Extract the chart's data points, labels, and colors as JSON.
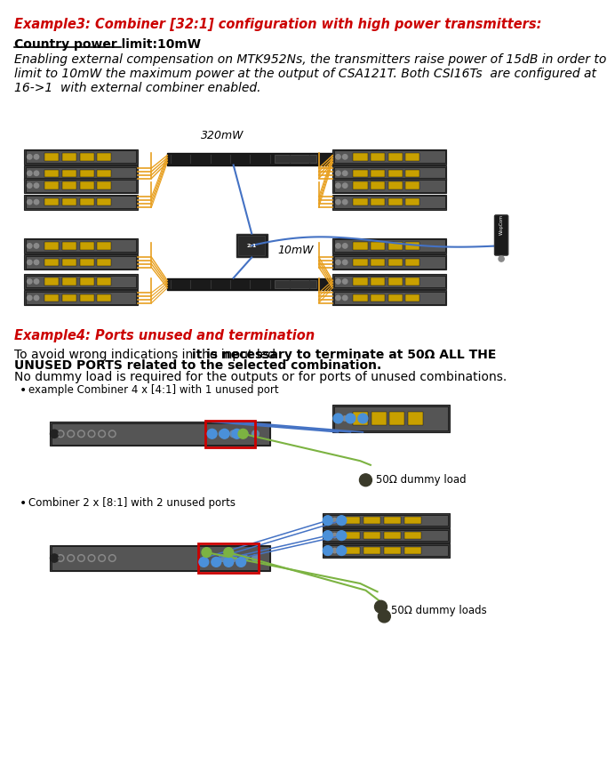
{
  "title_example3": "Example3: Combiner [32:1] configuration with high power transmitters:",
  "title_example4": "Example4: Ports unused and termination",
  "subtitle_example3": "Country power limit:10mW",
  "body_example3": "Enabling external compensation on MTK952Ns, the transmitters raise power of 15dB in order to\nlimit to 10mW the maximum power at the output of CSA121T. Both CSI16Ts  are configured at\n16->1  with external combiner enabled.",
  "label_320mW": "320mW",
  "label_10mW": "10mW",
  "body_example4_normal2": "No dummy load is required for the outputs or for ports of unused combinations.",
  "bullet1": "example Combiner 4 x [4:1] with 1 unused port",
  "bullet2": "Combiner 2 x [8:1] with 2 unused ports",
  "label_50ohm_1": "50Ω dummy load",
  "label_50ohm_2": "50Ω dummy loads",
  "bg_color": "#ffffff",
  "red_color": "#cc0000",
  "text_color": "#000000",
  "orange_color": "#e8a020",
  "blue_color": "#4472c4",
  "yellow_display": "#c8a000",
  "red_box_color": "#cc0000",
  "blue_dot_color": "#4a90d9",
  "green_dot_color": "#7cb342",
  "font_size_title": 10.5,
  "font_size_body": 10,
  "font_size_small": 8.5,
  "font_size_label": 9
}
